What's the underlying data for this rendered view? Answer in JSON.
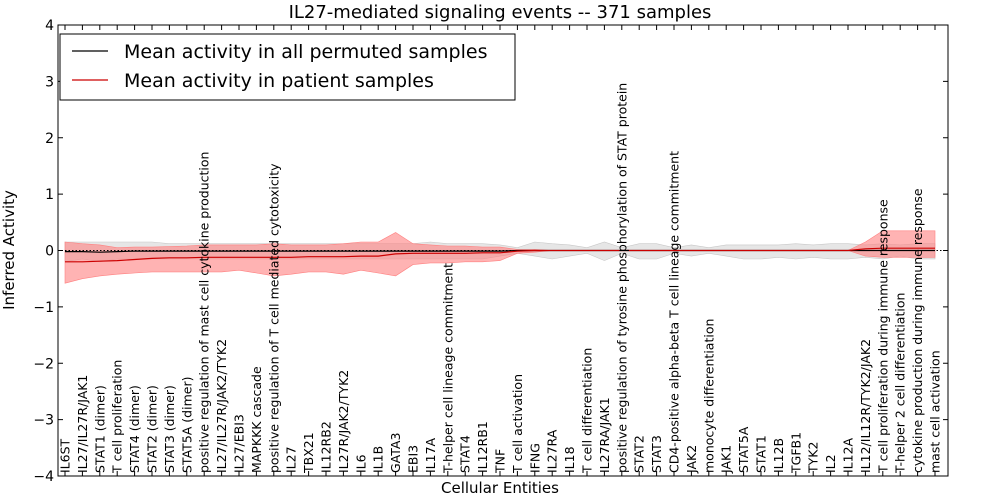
{
  "chart_data": {
    "type": "line",
    "title": "IL27-mediated signaling events -- 371 samples",
    "xlabel": "Cellular Entities",
    "ylabel": "Inferred Activity",
    "ylim": [
      -4,
      4
    ],
    "yticks": [
      -4,
      -3,
      -2,
      -1,
      0,
      1,
      2,
      3,
      4
    ],
    "ytick_labels": [
      "−4",
      "−3",
      "−2",
      "−1",
      "0",
      "1",
      "2",
      "3",
      "4"
    ],
    "legend_position": "top-left",
    "categories": [
      "IL6ST",
      "IL27/IL27R/JAK1",
      "STAT1 (dimer)",
      "T cell proliferation",
      "STAT4 (dimer)",
      "STAT2 (dimer)",
      "STAT3 (dimer)",
      "STAT5A (dimer)",
      "positive regulation of mast cell cytokine production",
      "IL27/IL27R/JAK2/TYK2",
      "IL27/EBI3",
      "MAPKKK cascade",
      "positive regulation of T cell mediated cytotoxicity",
      "IL27",
      "TBX21",
      "IL12RB2",
      "IL27R/JAK2/TYK2",
      "IL6",
      "IL1B",
      "GATA3",
      "EBI3",
      "IL17A",
      "T-helper cell lineage commitment",
      "STAT4",
      "IL12RB1",
      "TNF",
      "T cell activation",
      "IFNG",
      "IL27RA",
      "IL18",
      "T cell differentiation",
      "IL27RA/JAK1",
      "positive regulation of tyrosine phosphorylation of STAT protein",
      "STAT2",
      "STAT3",
      "CD4-positive alpha-beta T cell lineage commitment",
      "JAK2",
      "monocyte differentiation",
      "JAK1",
      "STAT5A",
      "STAT1",
      "IL12B",
      "TGFB1",
      "TYK2",
      "IL2",
      "IL12A",
      "IL12/IL12R/TYK2/JAK2",
      "T cell proliferation during immune response",
      "T-helper 2 cell differentiation",
      "cytokine production during immune response",
      "mast cell activation"
    ],
    "series": [
      {
        "name": "Mean activity in all permuted samples",
        "color": "#000000",
        "band_color": "#c8c8c8",
        "values": [
          -0.02,
          -0.02,
          -0.03,
          -0.02,
          -0.01,
          -0.01,
          -0.01,
          -0.01,
          -0.01,
          -0.01,
          -0.01,
          -0.01,
          -0.01,
          -0.01,
          -0.01,
          -0.01,
          -0.01,
          -0.01,
          -0.01,
          -0.01,
          -0.01,
          -0.01,
          -0.01,
          -0.01,
          -0.01,
          -0.01,
          0.0,
          0.0,
          0.0,
          0.0,
          0.0,
          0.0,
          0.0,
          0.0,
          0.0,
          0.0,
          0.0,
          0.0,
          0.0,
          0.0,
          0.0,
          0.0,
          0.0,
          0.0,
          0.0,
          0.0,
          0.0,
          0.0,
          0.0,
          0.0,
          0.0
        ],
        "lower": [
          -0.2,
          -0.15,
          -0.2,
          -0.15,
          -0.15,
          -0.15,
          -0.15,
          -0.15,
          -0.15,
          -0.15,
          -0.15,
          -0.15,
          -0.15,
          -0.15,
          -0.15,
          -0.15,
          -0.15,
          -0.15,
          -0.15,
          -0.15,
          -0.15,
          -0.15,
          -0.15,
          -0.15,
          -0.15,
          -0.1,
          -0.05,
          -0.1,
          -0.15,
          -0.1,
          -0.05,
          -0.18,
          -0.05,
          -0.15,
          -0.15,
          -0.05,
          -0.1,
          -0.05,
          -0.1,
          -0.15,
          -0.15,
          -0.12,
          -0.15,
          -0.12,
          -0.15,
          -0.15,
          -0.12,
          -0.15,
          -0.1,
          -0.15,
          -0.15
        ],
        "upper": [
          0.15,
          0.15,
          0.15,
          0.15,
          0.15,
          0.15,
          0.12,
          0.12,
          0.12,
          0.12,
          0.12,
          0.12,
          0.12,
          0.12,
          0.12,
          0.12,
          0.12,
          0.12,
          0.12,
          0.12,
          0.12,
          0.15,
          0.12,
          0.12,
          0.12,
          0.1,
          0.05,
          0.15,
          0.12,
          0.1,
          0.05,
          0.15,
          0.05,
          0.12,
          0.12,
          0.05,
          0.1,
          0.05,
          0.1,
          0.1,
          0.1,
          0.1,
          0.12,
          0.1,
          0.12,
          0.12,
          0.1,
          0.12,
          0.1,
          0.12,
          0.12
        ]
      },
      {
        "name": "Mean activity in patient samples",
        "color": "#cc0000",
        "band_color": "#ff8080",
        "values": [
          -0.2,
          -0.2,
          -0.19,
          -0.18,
          -0.16,
          -0.14,
          -0.13,
          -0.13,
          -0.12,
          -0.12,
          -0.12,
          -0.12,
          -0.12,
          -0.12,
          -0.11,
          -0.11,
          -0.11,
          -0.1,
          -0.1,
          -0.06,
          -0.05,
          -0.05,
          -0.05,
          -0.05,
          -0.04,
          -0.04,
          -0.01,
          0.0,
          0.0,
          0.0,
          0.0,
          0.0,
          0.0,
          0.0,
          0.0,
          0.0,
          0.0,
          0.0,
          0.0,
          0.0,
          0.0,
          0.0,
          0.0,
          0.0,
          0.0,
          0.0,
          0.03,
          0.04,
          0.04,
          0.04,
          0.04
        ],
        "lower": [
          -0.58,
          -0.5,
          -0.45,
          -0.42,
          -0.4,
          -0.38,
          -0.38,
          -0.38,
          -0.38,
          -0.38,
          -0.35,
          -0.4,
          -0.45,
          -0.42,
          -0.38,
          -0.38,
          -0.42,
          -0.35,
          -0.4,
          -0.45,
          -0.25,
          -0.22,
          -0.22,
          -0.2,
          -0.2,
          -0.18,
          -0.05,
          -0.03,
          0.0,
          0.0,
          0.0,
          0.0,
          0.0,
          0.0,
          0.0,
          0.0,
          0.0,
          0.0,
          0.0,
          0.0,
          0.0,
          0.0,
          0.0,
          0.0,
          0.0,
          0.0,
          -0.1,
          -0.12,
          -0.12,
          -0.12,
          -0.12
        ],
        "upper": [
          0.15,
          0.12,
          0.1,
          0.05,
          0.06,
          0.06,
          0.07,
          0.08,
          0.1,
          0.1,
          0.1,
          0.1,
          0.12,
          0.1,
          0.1,
          0.1,
          0.12,
          0.15,
          0.15,
          0.32,
          0.12,
          0.1,
          0.08,
          0.08,
          0.06,
          0.06,
          0.02,
          0.02,
          0.0,
          0.0,
          0.0,
          0.0,
          0.0,
          0.0,
          0.0,
          0.0,
          0.0,
          0.0,
          0.0,
          0.0,
          0.0,
          0.0,
          0.0,
          0.0,
          0.0,
          0.0,
          0.15,
          0.35,
          0.35,
          0.35,
          0.35
        ]
      }
    ]
  }
}
